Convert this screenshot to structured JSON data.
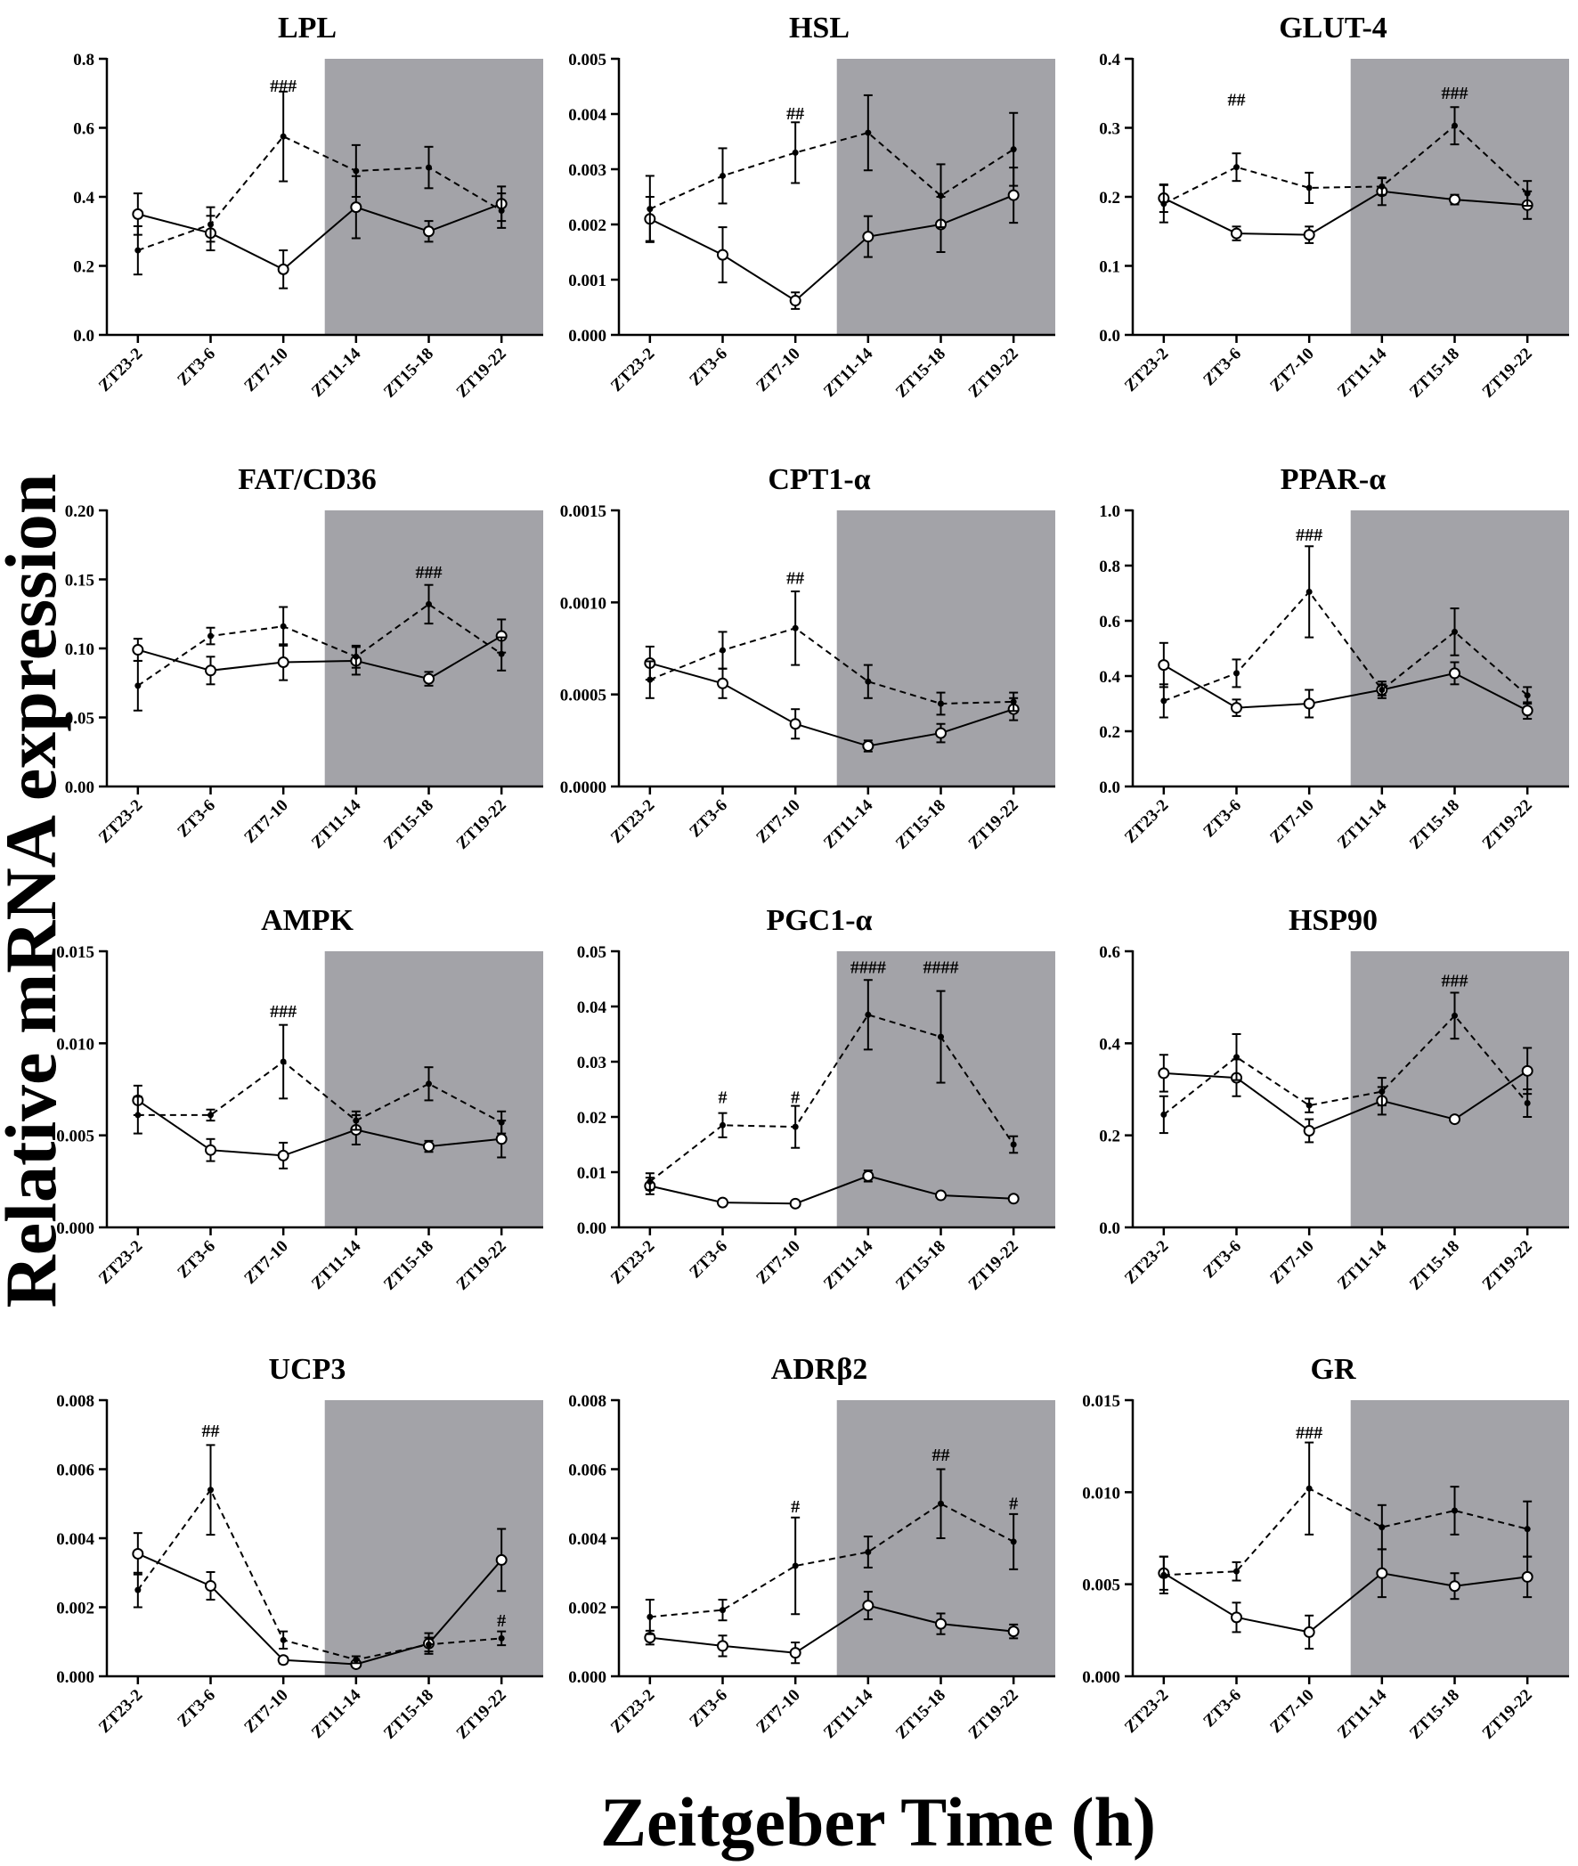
{
  "figure": {
    "y_axis_label": "Relative mRNA expression",
    "x_axis_label": "Zeitgeber Time (h)",
    "colors": {
      "dark_phase": "#a3a3a8",
      "ink": "#000000",
      "marker_fill": "#ffffff"
    },
    "series_legend": [
      {
        "name": "solid line, open circles",
        "style": "solid"
      },
      {
        "name": "dashed line, filled dots",
        "style": "dashed"
      }
    ]
  },
  "chart_data": [
    {
      "type": "line",
      "title": "LPL",
      "ylim": [
        0,
        0.8
      ],
      "yticks": [
        "0.0",
        "0.2",
        "0.4",
        "0.6",
        "0.8"
      ],
      "categories": [
        "ZT23-2",
        "ZT3-6",
        "ZT7-10",
        "ZT11-14",
        "ZT15-18",
        "ZT19-22"
      ],
      "dark_phase_start": "ZT11-14",
      "series": [
        {
          "name": "solid",
          "values": [
            0.35,
            0.295,
            0.19,
            0.37,
            0.3,
            0.38
          ],
          "errors": [
            0.06,
            0.05,
            0.055,
            0.09,
            0.03,
            0.05
          ]
        },
        {
          "name": "dashed",
          "values": [
            0.245,
            0.32,
            0.575,
            0.475,
            0.485,
            0.36
          ],
          "errors": [
            0.07,
            0.05,
            0.13,
            0.075,
            0.06,
            0.05
          ]
        }
      ],
      "annotations": [
        {
          "text": "###",
          "category": "ZT7-10",
          "y": 0.72
        }
      ]
    },
    {
      "type": "line",
      "title": "HSL",
      "ylim": [
        0,
        0.005
      ],
      "yticks": [
        "0.000",
        "0.001",
        "0.002",
        "0.003",
        "0.004",
        "0.005"
      ],
      "categories": [
        "ZT23-2",
        "ZT3-6",
        "ZT7-10",
        "ZT11-14",
        "ZT15-18",
        "ZT19-22"
      ],
      "dark_phase_start": "ZT11-14",
      "series": [
        {
          "name": "solid",
          "values": [
            0.0021,
            0.00145,
            0.00062,
            0.00178,
            0.002,
            0.00253
          ],
          "errors": [
            0.0004,
            0.0005,
            0.00015,
            0.00037,
            0.0005,
            0.0005
          ]
        },
        {
          "name": "dashed",
          "values": [
            0.00228,
            0.00288,
            0.0033,
            0.00366,
            0.00252,
            0.00336
          ],
          "errors": [
            0.0006,
            0.0005,
            0.00055,
            0.00068,
            0.00057,
            0.00066
          ]
        }
      ],
      "annotations": [
        {
          "text": "##",
          "category": "ZT7-10",
          "y": 0.004
        }
      ]
    },
    {
      "type": "line",
      "title": "GLUT-4",
      "ylim": [
        0,
        0.4
      ],
      "yticks": [
        "0.0",
        "0.1",
        "0.2",
        "0.3",
        "0.4"
      ],
      "categories": [
        "ZT23-2",
        "ZT3-6",
        "ZT7-10",
        "ZT11-14",
        "ZT15-18",
        "ZT19-22"
      ],
      "dark_phase_start": "ZT11-14",
      "series": [
        {
          "name": "solid",
          "values": [
            0.198,
            0.147,
            0.145,
            0.208,
            0.196,
            0.188
          ],
          "errors": [
            0.02,
            0.01,
            0.012,
            0.02,
            0.007,
            0.02
          ]
        },
        {
          "name": "dashed",
          "values": [
            0.19,
            0.243,
            0.213,
            0.215,
            0.303,
            0.205
          ],
          "errors": [
            0.027,
            0.02,
            0.022,
            0.012,
            0.027,
            0.018
          ]
        }
      ],
      "annotations": [
        {
          "text": "##",
          "category": "ZT3-6",
          "y": 0.34
        },
        {
          "text": "###",
          "category": "ZT15-18",
          "y": 0.35
        }
      ]
    },
    {
      "type": "line",
      "title": "FAT/CD36",
      "ylim": [
        0,
        0.2
      ],
      "yticks": [
        "0.00",
        "0.05",
        "0.10",
        "0.15",
        "0.20"
      ],
      "categories": [
        "ZT23-2",
        "ZT3-6",
        "ZT7-10",
        "ZT11-14",
        "ZT15-18",
        "ZT19-22"
      ],
      "dark_phase_start": "ZT11-14",
      "series": [
        {
          "name": "solid",
          "values": [
            0.099,
            0.084,
            0.09,
            0.091,
            0.078,
            0.109
          ],
          "errors": [
            0.008,
            0.01,
            0.013,
            0.01,
            0.005,
            0.012
          ]
        },
        {
          "name": "dashed",
          "values": [
            0.073,
            0.109,
            0.116,
            0.094,
            0.132,
            0.096
          ],
          "errors": [
            0.018,
            0.006,
            0.014,
            0.008,
            0.014,
            0.012
          ]
        }
      ],
      "annotations": [
        {
          "text": "###",
          "category": "ZT15-18",
          "y": 0.155
        }
      ]
    },
    {
      "type": "line",
      "title": "CPT1-α",
      "ylim": [
        0,
        0.0015
      ],
      "yticks": [
        "0.0000",
        "0.0005",
        "0.0010",
        "0.0015"
      ],
      "categories": [
        "ZT23-2",
        "ZT3-6",
        "ZT7-10",
        "ZT11-14",
        "ZT15-18",
        "ZT19-22"
      ],
      "dark_phase_start": "ZT11-14",
      "series": [
        {
          "name": "solid",
          "values": [
            0.00067,
            0.00056,
            0.00034,
            0.00022,
            0.00029,
            0.00042
          ],
          "errors": [
            9e-05,
            8e-05,
            8e-05,
            3e-05,
            5e-05,
            6e-05
          ]
        },
        {
          "name": "dashed",
          "values": [
            0.00058,
            0.00074,
            0.00086,
            0.00057,
            0.00045,
            0.00046
          ],
          "errors": [
            0.0001,
            0.0001,
            0.0002,
            9e-05,
            6e-05,
            5e-05
          ]
        }
      ],
      "annotations": [
        {
          "text": "##",
          "category": "ZT7-10",
          "y": 0.00113
        }
      ]
    },
    {
      "type": "line",
      "title": "PPAR-α",
      "ylim": [
        0,
        1.0
      ],
      "yticks": [
        "0.0",
        "0.2",
        "0.4",
        "0.6",
        "0.8",
        "1.0"
      ],
      "categories": [
        "ZT23-2",
        "ZT3-6",
        "ZT7-10",
        "ZT11-14",
        "ZT15-18",
        "ZT19-22"
      ],
      "dark_phase_start": "ZT11-14",
      "series": [
        {
          "name": "solid",
          "values": [
            0.44,
            0.285,
            0.3,
            0.35,
            0.41,
            0.275
          ],
          "errors": [
            0.08,
            0.03,
            0.05,
            0.03,
            0.04,
            0.03
          ]
        },
        {
          "name": "dashed",
          "values": [
            0.31,
            0.41,
            0.705,
            0.35,
            0.56,
            0.33
          ],
          "errors": [
            0.06,
            0.05,
            0.165,
            0.02,
            0.085,
            0.03
          ]
        }
      ],
      "annotations": [
        {
          "text": "###",
          "category": "ZT7-10",
          "y": 0.91
        }
      ]
    },
    {
      "type": "line",
      "title": "AMPK",
      "ylim": [
        0,
        0.015
      ],
      "yticks": [
        "0.000",
        "0.005",
        "0.010",
        "0.015"
      ],
      "categories": [
        "ZT23-2",
        "ZT3-6",
        "ZT7-10",
        "ZT11-14",
        "ZT15-18",
        "ZT19-22"
      ],
      "dark_phase_start": "ZT11-14",
      "series": [
        {
          "name": "solid",
          "values": [
            0.0069,
            0.0042,
            0.0039,
            0.0053,
            0.0044,
            0.0048
          ],
          "errors": [
            0.0008,
            0.0006,
            0.0007,
            0.0008,
            0.0003,
            0.001
          ]
        },
        {
          "name": "dashed",
          "values": [
            0.0061,
            0.0061,
            0.009,
            0.0058,
            0.0078,
            0.0057
          ],
          "errors": [
            0.001,
            0.0003,
            0.002,
            0.0005,
            0.0009,
            0.0006
          ]
        }
      ],
      "annotations": [
        {
          "text": "###",
          "category": "ZT7-10",
          "y": 0.0117
        }
      ]
    },
    {
      "type": "line",
      "title": "PGC1-α",
      "ylim": [
        0,
        0.05
      ],
      "yticks": [
        "0.00",
        "0.01",
        "0.02",
        "0.03",
        "0.04",
        "0.05"
      ],
      "categories": [
        "ZT23-2",
        "ZT3-6",
        "ZT7-10",
        "ZT11-14",
        "ZT15-18",
        "ZT19-22"
      ],
      "dark_phase_start": "ZT11-14",
      "series": [
        {
          "name": "solid",
          "values": [
            0.0075,
            0.0045,
            0.0043,
            0.0093,
            0.0058,
            0.0052
          ],
          "errors": [
            0.0015,
            0.0005,
            0.0005,
            0.001,
            0.0003,
            0.0004
          ]
        },
        {
          "name": "dashed",
          "values": [
            0.0083,
            0.0185,
            0.0182,
            0.0385,
            0.0345,
            0.015
          ],
          "errors": [
            0.0015,
            0.0022,
            0.0038,
            0.0063,
            0.0083,
            0.0015
          ]
        }
      ],
      "annotations": [
        {
          "text": "#",
          "category": "ZT3-6",
          "y": 0.0235
        },
        {
          "text": "#",
          "category": "ZT7-10",
          "y": 0.0235
        },
        {
          "text": "####",
          "category": "ZT11-14",
          "y": 0.047
        },
        {
          "text": "####",
          "category": "ZT15-18",
          "y": 0.047
        }
      ]
    },
    {
      "type": "line",
      "title": "HSP90",
      "ylim": [
        0,
        0.6
      ],
      "yticks": [
        "0.0",
        "0.2",
        "0.4",
        "0.6"
      ],
      "categories": [
        "ZT23-2",
        "ZT3-6",
        "ZT7-10",
        "ZT11-14",
        "ZT15-18",
        "ZT19-22"
      ],
      "dark_phase_start": "ZT11-14",
      "series": [
        {
          "name": "solid",
          "values": [
            0.335,
            0.325,
            0.21,
            0.275,
            0.235,
            0.34
          ],
          "errors": [
            0.04,
            0.04,
            0.025,
            0.03,
            0.005,
            0.05
          ]
        },
        {
          "name": "dashed",
          "values": [
            0.245,
            0.37,
            0.265,
            0.295,
            0.46,
            0.27
          ],
          "errors": [
            0.04,
            0.05,
            0.015,
            0.03,
            0.05,
            0.03
          ]
        }
      ],
      "annotations": [
        {
          "text": "###",
          "category": "ZT15-18",
          "y": 0.535
        }
      ]
    },
    {
      "type": "line",
      "title": "UCP3",
      "ylim": [
        0,
        0.008
      ],
      "yticks": [
        "0.000",
        "0.002",
        "0.004",
        "0.006",
        "0.008"
      ],
      "categories": [
        "ZT23-2",
        "ZT3-6",
        "ZT7-10",
        "ZT11-14",
        "ZT15-18",
        "ZT19-22"
      ],
      "dark_phase_start": "ZT11-14",
      "series": [
        {
          "name": "solid",
          "values": [
            0.00355,
            0.00262,
            0.00047,
            0.00035,
            0.00095,
            0.00337
          ],
          "errors": [
            0.0006,
            0.0004,
            0.0001,
            6e-05,
            0.0003,
            0.0009
          ]
        },
        {
          "name": "dashed",
          "values": [
            0.0025,
            0.0054,
            0.00105,
            0.00048,
            0.00092,
            0.0011
          ],
          "errors": [
            0.0005,
            0.0013,
            0.00025,
            0.0001,
            0.0002,
            0.0002
          ]
        }
      ],
      "annotations": [
        {
          "text": "##",
          "category": "ZT3-6",
          "y": 0.0071
        },
        {
          "text": "#",
          "category": "ZT19-22",
          "y": 0.0016
        }
      ]
    },
    {
      "type": "line",
      "title": "ADRβ2",
      "ylim": [
        0,
        0.008
      ],
      "yticks": [
        "0.000",
        "0.002",
        "0.004",
        "0.006",
        "0.008"
      ],
      "categories": [
        "ZT23-2",
        "ZT3-6",
        "ZT7-10",
        "ZT11-14",
        "ZT15-18",
        "ZT19-22"
      ],
      "dark_phase_start": "ZT11-14",
      "series": [
        {
          "name": "solid",
          "values": [
            0.00112,
            0.00088,
            0.00068,
            0.00205,
            0.00152,
            0.0013
          ],
          "errors": [
            0.0002,
            0.0003,
            0.0003,
            0.0004,
            0.0003,
            0.0002
          ]
        },
        {
          "name": "dashed",
          "values": [
            0.00172,
            0.00192,
            0.0032,
            0.0036,
            0.005,
            0.0039
          ],
          "errors": [
            0.0005,
            0.0003,
            0.0014,
            0.00045,
            0.001,
            0.0008
          ]
        }
      ],
      "annotations": [
        {
          "text": "#",
          "category": "ZT7-10",
          "y": 0.0049
        },
        {
          "text": "##",
          "category": "ZT15-18",
          "y": 0.0064
        },
        {
          "text": "#",
          "category": "ZT19-22",
          "y": 0.005
        }
      ]
    },
    {
      "type": "line",
      "title": "GR",
      "ylim": [
        0,
        0.015
      ],
      "yticks": [
        "0.000",
        "0.005",
        "0.010",
        "0.015"
      ],
      "categories": [
        "ZT23-2",
        "ZT3-6",
        "ZT7-10",
        "ZT11-14",
        "ZT15-18",
        "ZT19-22"
      ],
      "dark_phase_start": "ZT11-14",
      "series": [
        {
          "name": "solid",
          "values": [
            0.0056,
            0.0032,
            0.0024,
            0.0056,
            0.0049,
            0.0054
          ],
          "errors": [
            0.0009,
            0.0008,
            0.0009,
            0.0013,
            0.0007,
            0.0011
          ]
        },
        {
          "name": "dashed",
          "values": [
            0.0055,
            0.0057,
            0.0102,
            0.0081,
            0.009,
            0.008
          ],
          "errors": [
            0.001,
            0.0005,
            0.0025,
            0.0012,
            0.0013,
            0.0015
          ]
        }
      ],
      "annotations": [
        {
          "text": "###",
          "category": "ZT7-10",
          "y": 0.0132
        }
      ]
    }
  ]
}
